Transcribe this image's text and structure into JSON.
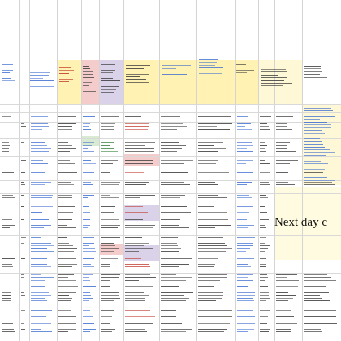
{
  "sheet": {
    "callout_text": "Next day c",
    "colors": {
      "header_fill": "#fff2b3",
      "note_fill": "#fff8d6",
      "red_fill": "#f4cccc",
      "purple_fill": "#d9d2e9",
      "green_fill": "#d9ead3",
      "grid_line": "#d4d4d4",
      "text_dark": "#3a3a3a",
      "text_link": "#3f6fd1",
      "text_red": "#c0392b",
      "text_green": "#2e7d32"
    }
  }
}
